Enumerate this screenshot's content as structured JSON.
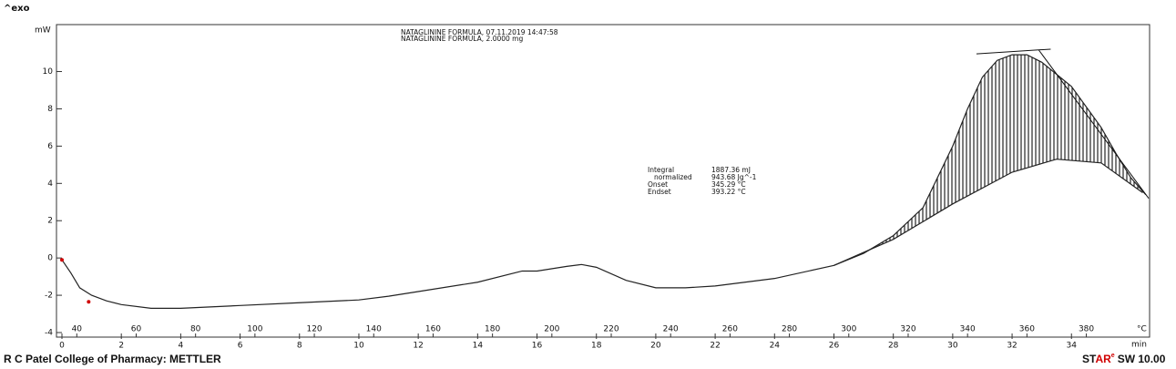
{
  "chart_data": {
    "type": "line",
    "exo_label": "^exo",
    "y_label": "mW",
    "x_label": "min",
    "x2_label": "°C",
    "annotation_lines": [
      "NATAGLININE FORMULA, 07.11.2019 14:47:58",
      "NATAGLININE FORMULA, 2.0000 mg"
    ],
    "results": [
      [
        "Integral",
        "1887.36 mJ"
      ],
      [
        "normalized",
        "943.68 Jg^-1"
      ],
      [
        "Onset",
        "345.29 °C"
      ],
      [
        "Endset",
        "393.22 °C"
      ]
    ],
    "footer_left": "R C Patel College of Pharmacy: METTLER",
    "footer_right": [
      "ST",
      "AR",
      "e",
      "SW 10.00"
    ],
    "xlim": [
      0,
      36.6
    ],
    "ylim": [
      -4,
      12.2
    ],
    "x2lim": [
      35,
      401
    ],
    "xticks": [
      0,
      2,
      4,
      6,
      8,
      10,
      12,
      14,
      16,
      18,
      20,
      22,
      24,
      26,
      28,
      30,
      32,
      34
    ],
    "x2ticks": [
      40,
      60,
      80,
      100,
      120,
      140,
      160,
      180,
      200,
      220,
      240,
      260,
      280,
      300,
      320,
      340,
      360,
      380
    ],
    "yticks": [
      -4,
      -2,
      0,
      2,
      4,
      6,
      8,
      10
    ],
    "series": [
      {
        "name": "DSC curve",
        "color": "#222222",
        "x": [
          0,
          0.3,
          0.6,
          1,
          1.5,
          2,
          3,
          4,
          6,
          8,
          10,
          11,
          12,
          14,
          15.5,
          16,
          17,
          17.5,
          18,
          19,
          20,
          21,
          22,
          24,
          26,
          27,
          28,
          29,
          30,
          30.5,
          31,
          31.5,
          32,
          32.5,
          33,
          34,
          35,
          35.5,
          36,
          36.5
        ],
        "values": [
          -0.1,
          -0.8,
          -1.6,
          -2.0,
          -2.3,
          -2.5,
          -2.7,
          -2.7,
          -2.55,
          -2.4,
          -2.25,
          -2.05,
          -1.8,
          -1.3,
          -0.7,
          -0.7,
          -0.45,
          -0.35,
          -0.5,
          -1.2,
          -1.6,
          -1.6,
          -1.5,
          -1.1,
          -0.4,
          0.25,
          1.2,
          2.7,
          6.0,
          8.0,
          9.7,
          10.6,
          10.9,
          10.9,
          10.5,
          9.2,
          7.0,
          5.6,
          4.3,
          3.4
        ]
      },
      {
        "name": "Integration baseline",
        "color": "#222222",
        "x": [
          26,
          28,
          30,
          32,
          33.5,
          35,
          36.4
        ],
        "values": [
          -0.4,
          1.0,
          2.9,
          4.6,
          5.3,
          5.1,
          3.5
        ]
      }
    ],
    "tangents": [
      {
        "x": [
          30.8,
          33.3
        ],
        "values": [
          10.95,
          11.2
        ]
      },
      {
        "x": [
          32.9,
          36.6
        ],
        "values": [
          11.15,
          3.2
        ]
      }
    ],
    "markers": {
      "color": "#d00000",
      "x": [
        0,
        0.9
      ],
      "values": [
        -0.1,
        -2.35
      ]
    }
  }
}
